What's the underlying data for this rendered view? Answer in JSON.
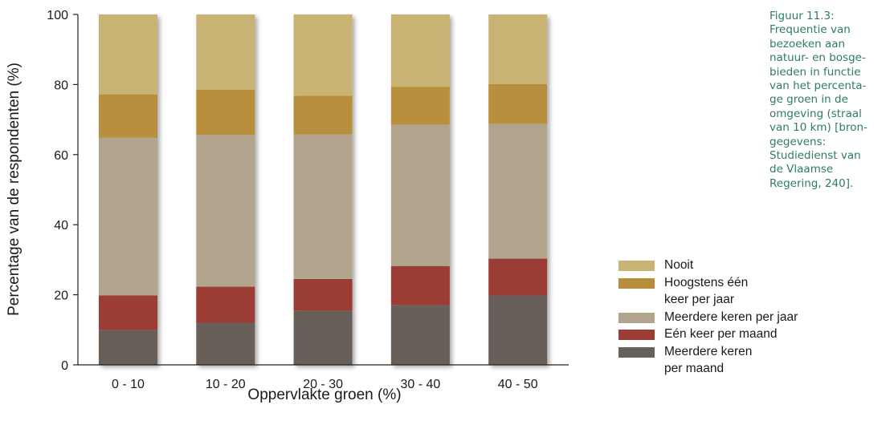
{
  "caption": "Figuur 11.3:\nFrequentie van\nbezoeken aan\nnatuur- en bosge-\nbieden in functie\nvan het percenta-\nge groen in de\nomgeving (straal\nvan 10 km) [bron-\ngegevens:\nStudiedienst van\nde Vlaamse\nRegering, 240].",
  "legend": [
    {
      "label": "Nooit",
      "color": "#c8b374"
    },
    {
      "label": "Hoogstens één\nkeer per jaar",
      "color": "#b78f3c"
    },
    {
      "label": "Meerdere keren per jaar",
      "color": "#b3a58d"
    },
    {
      "label": "Eén keer per maand",
      "color": "#9b3c35"
    },
    {
      "label": "Meerdere keren\nper maand",
      "color": "#676158"
    }
  ],
  "chart_data": {
    "type": "bar",
    "stacked": true,
    "xlabel": "Oppervlakte groen (%)",
    "ylabel": "Percentage van de respondenten (%)",
    "ylim": [
      0,
      100
    ],
    "yticks": [
      0,
      20,
      40,
      60,
      80,
      100
    ],
    "categories": [
      "0 - 10",
      "10 - 20",
      "20 - 30",
      "30 - 40",
      "40 - 50"
    ],
    "series": [
      {
        "name": "Meerdere keren\nper maand",
        "color": "#676158",
        "values": [
          10,
          12,
          15.5,
          17,
          19.8
        ]
      },
      {
        "name": "Eén keer per maand",
        "color": "#9b3c35",
        "values": [
          9.8,
          10.3,
          9,
          11.2,
          10.5
        ]
      },
      {
        "name": "Meerdere keren per jaar",
        "color": "#b3a58d",
        "values": [
          45,
          43.3,
          41.3,
          40.3,
          38.5
        ]
      },
      {
        "name": "Hoogstens één\nkeer per jaar",
        "color": "#b78f3c",
        "values": [
          12.4,
          12.9,
          11,
          10.8,
          11.3
        ]
      },
      {
        "name": "Nooit",
        "color": "#c8b374",
        "values": [
          22.8,
          21.5,
          23.2,
          20.7,
          19.9
        ]
      }
    ]
  }
}
